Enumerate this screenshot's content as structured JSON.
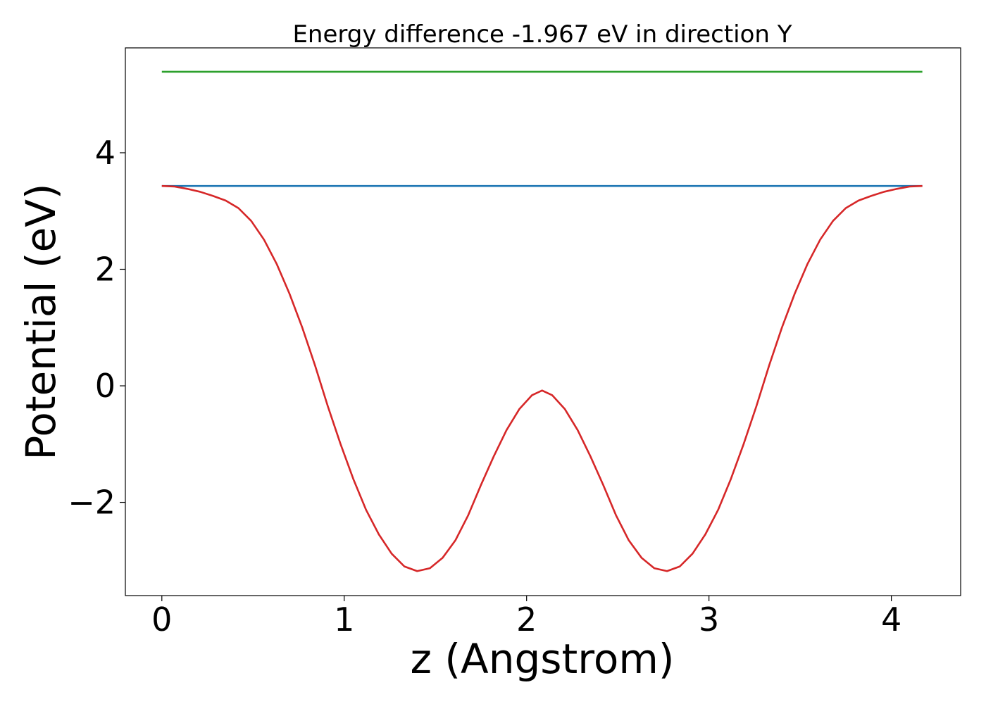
{
  "chart_data": {
    "type": "line",
    "title": "Energy difference -1.967 eV in direction Y",
    "xlabel": "z (Angstrom)",
    "ylabel": "Potential (eV)",
    "xlim": [
      -0.2,
      4.38
    ],
    "ylim": [
      -3.6,
      5.8
    ],
    "xticks": [
      0,
      1,
      2,
      3,
      4
    ],
    "xtick_labels": [
      "0",
      "1",
      "2",
      "3",
      "4"
    ],
    "yticks": [
      -2,
      0,
      2,
      4
    ],
    "ytick_labels": [
      "−2",
      "0",
      "2",
      "4"
    ],
    "grid": false,
    "series": [
      {
        "color": "#2ca02c",
        "x": [
          0,
          4.17
        ],
        "y": [
          5.39,
          5.39
        ]
      },
      {
        "color": "#1f77b4",
        "x": [
          0,
          4.17
        ],
        "y": [
          3.43,
          3.43
        ]
      },
      {
        "color": "#d62728",
        "x": [
          0,
          0.07,
          0.14,
          0.21,
          0.28,
          0.35,
          0.42,
          0.49,
          0.56,
          0.63,
          0.7,
          0.77,
          0.84,
          0.91,
          0.98,
          1.05,
          1.12,
          1.19,
          1.26,
          1.33,
          1.4,
          1.47,
          1.54,
          1.61,
          1.68,
          1.75,
          1.82,
          1.89,
          1.96,
          2.03,
          2.085,
          2.14,
          2.21,
          2.28,
          2.35,
          2.42,
          2.49,
          2.56,
          2.63,
          2.7,
          2.77,
          2.84,
          2.91,
          2.98,
          3.05,
          3.12,
          3.19,
          3.26,
          3.33,
          3.4,
          3.47,
          3.54,
          3.61,
          3.68,
          3.75,
          3.82,
          3.89,
          3.96,
          4.03,
          4.1,
          4.17
        ],
        "y": [
          3.43,
          3.42,
          3.38,
          3.33,
          3.26,
          3.18,
          3.05,
          2.83,
          2.51,
          2.09,
          1.58,
          1.0,
          0.35,
          -0.35,
          -1.0,
          -1.6,
          -2.13,
          -2.55,
          -2.88,
          -3.1,
          -3.18,
          -3.13,
          -2.95,
          -2.65,
          -2.22,
          -1.7,
          -1.21,
          -0.76,
          -0.4,
          -0.16,
          -0.08,
          -0.16,
          -0.4,
          -0.76,
          -1.21,
          -1.7,
          -2.22,
          -2.65,
          -2.95,
          -3.13,
          -3.18,
          -3.1,
          -2.88,
          -2.55,
          -2.13,
          -1.6,
          -1.0,
          -0.35,
          0.35,
          1.0,
          1.58,
          2.09,
          2.51,
          2.83,
          3.05,
          3.18,
          3.26,
          3.33,
          3.38,
          3.42,
          3.43
        ]
      }
    ]
  }
}
